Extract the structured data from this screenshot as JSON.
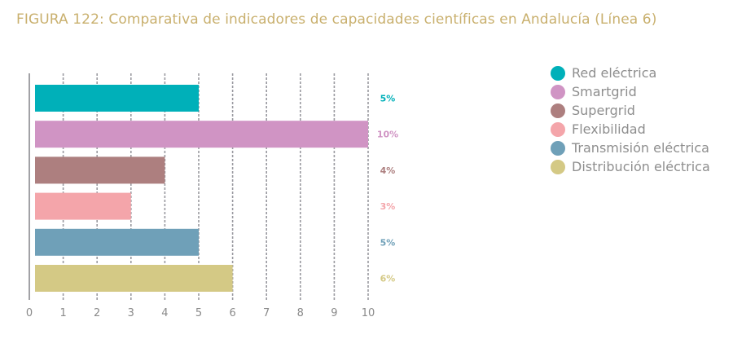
{
  "title": "FIGURA 122: Comparativa de indicadores de capacidades científicas en Andalucía (Línea 6)",
  "chart_data": {
    "type": "bar",
    "orientation": "horizontal",
    "categories": [
      "Red eléctrica",
      "Smartgrid",
      "Supergrid",
      "Flexibilidad",
      "Transmisión eléctrica",
      "Distribución eléctrica"
    ],
    "values": [
      5,
      10,
      4,
      3,
      5,
      6
    ],
    "value_labels": [
      "5%",
      "10%",
      "4%",
      "3%",
      "5%",
      "6%"
    ],
    "colors": [
      "#00b0b9",
      "#d094c4",
      "#ad7f7f",
      "#f4a5aa",
      "#6fa0b8",
      "#d4c985"
    ],
    "xlim": [
      0,
      10
    ],
    "xticks": [
      "0",
      "1",
      "2",
      "3",
      "4",
      "5",
      "6",
      "7",
      "8",
      "9",
      "10"
    ],
    "grid": "vertical dashed",
    "legend": "right"
  }
}
